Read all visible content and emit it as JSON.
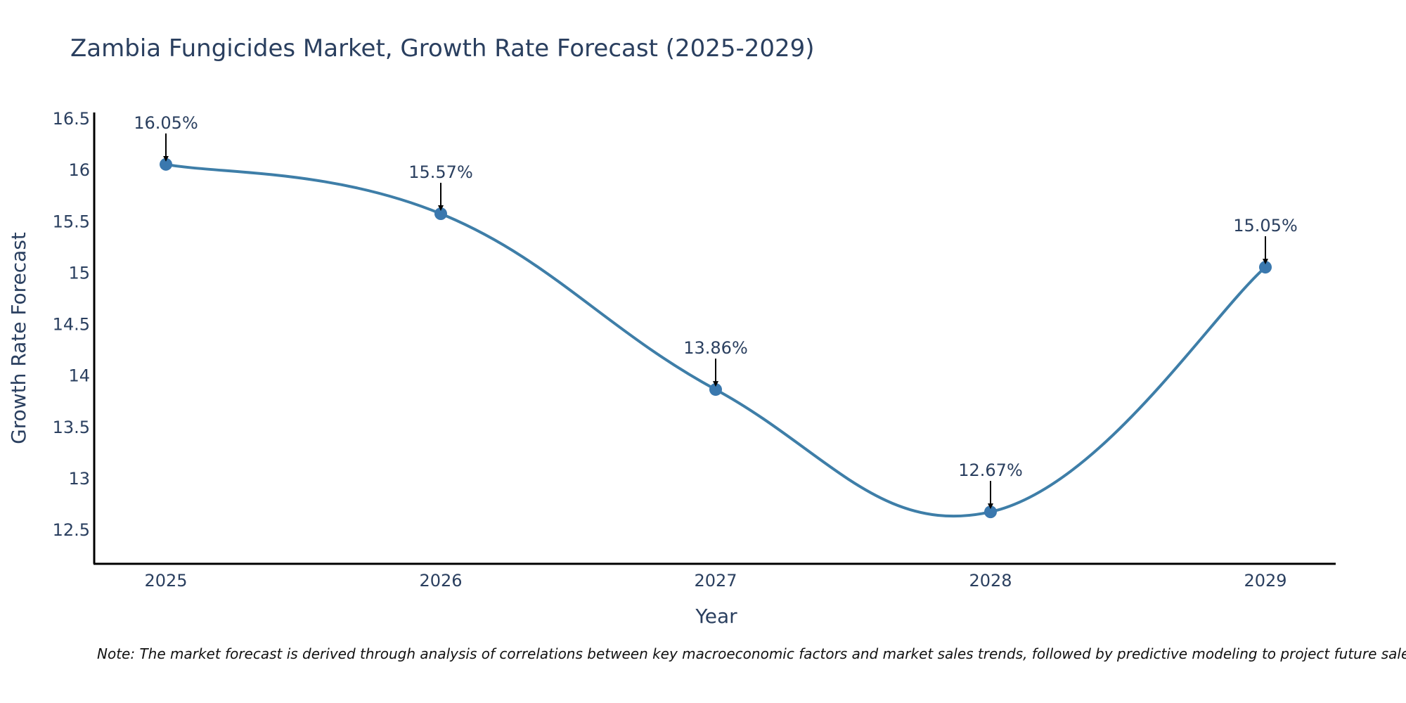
{
  "chart_data": {
    "type": "line",
    "title": "Zambia Fungicides Market, Growth Rate Forecast (2025-2029)",
    "xlabel": "Year",
    "ylabel": "Growth Rate Forecast",
    "categories": [
      "2025",
      "2026",
      "2027",
      "2028",
      "2029"
    ],
    "values": [
      16.05,
      15.57,
      13.86,
      12.67,
      15.05
    ],
    "data_labels": [
      "16.05%",
      "15.57%",
      "13.86%",
      "12.67%",
      "15.05%"
    ],
    "yticks": [
      12.5,
      13,
      13.5,
      14,
      14.5,
      15,
      15.5,
      16,
      16.5
    ],
    "ytick_labels": [
      "12.5",
      "13",
      "13.5",
      "14",
      "14.5",
      "15",
      "15.5",
      "16",
      "16.5"
    ],
    "ylim": [
      12.15,
      16.55
    ],
    "grid": false,
    "line_color": "#3e7ea8",
    "marker_color": "#3a78ae"
  },
  "note": "Note: The market forecast is derived through analysis of correlations between key macroeconomic factors and market sales trends, followed by predictive modeling to project future sales."
}
